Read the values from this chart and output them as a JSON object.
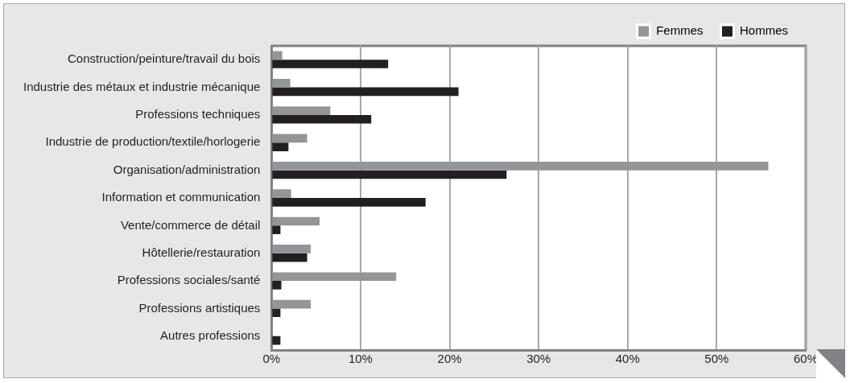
{
  "chart_data": {
    "type": "bar",
    "orientation": "horizontal",
    "categories": [
      "Construction/peinture/travail du bois",
      "Industrie des métaux et industrie mécanique",
      "Professions techniques",
      "Industrie de production/textile/horlogerie",
      "Organisation/administration",
      "Information et communication",
      "Vente/commerce de détail",
      "Hôtellerie/restauration",
      "Professions sociales/santé",
      "Professions artistiques",
      "Autres professions"
    ],
    "series": [
      {
        "name": "Femmes",
        "color": "#939598",
        "values": [
          1.2,
          2.1,
          6.6,
          4.0,
          55.8,
          2.2,
          5.4,
          4.4,
          14.0,
          4.4,
          null
        ]
      },
      {
        "name": "Hommes",
        "color": "#231f20",
        "values": [
          13.1,
          21.0,
          11.2,
          1.9,
          26.4,
          17.3,
          1.0,
          4.0,
          1.1,
          1.0,
          1.0
        ]
      }
    ],
    "xlim": [
      0,
      60
    ],
    "xticks": [
      {
        "value": 0,
        "label": "0%"
      },
      {
        "value": 10,
        "label": "10%"
      },
      {
        "value": 20,
        "label": "20%"
      },
      {
        "value": 30,
        "label": "30%"
      },
      {
        "value": 40,
        "label": "40%"
      },
      {
        "value": 50,
        "label": "50%"
      },
      {
        "value": 60,
        "label": "60%"
      }
    ],
    "grid": "x",
    "legend": "top right"
  }
}
